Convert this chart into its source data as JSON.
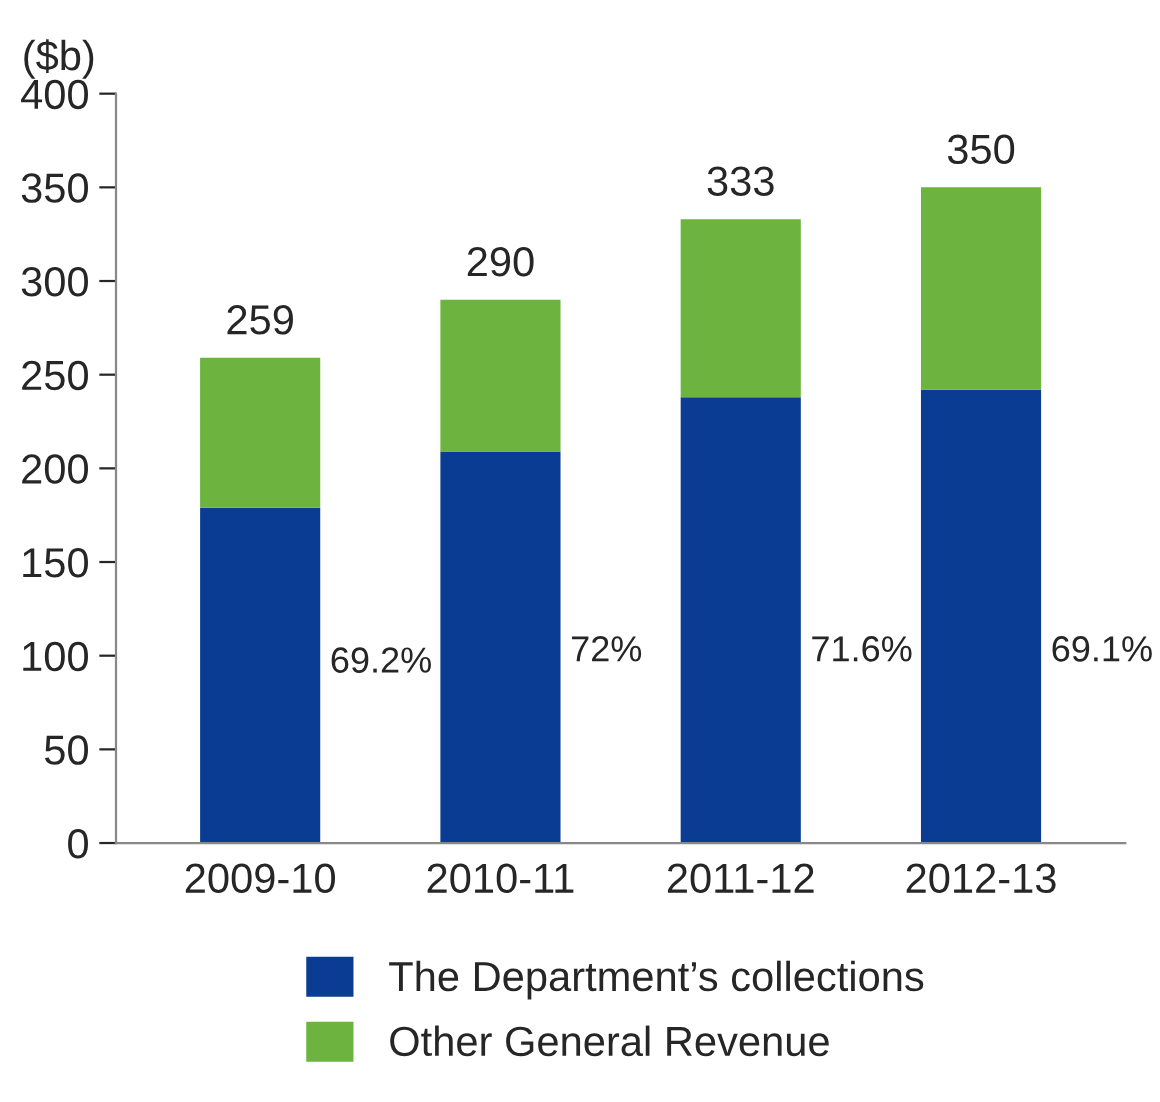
{
  "chart_data": {
    "type": "bar",
    "stacked": true,
    "ylabel": "($b)",
    "categories": [
      "2009-10",
      "2010-11",
      "2011-12",
      "2012-13"
    ],
    "series": [
      {
        "name": "The Department’s collections",
        "color": "#0b3c94",
        "values": [
          179,
          209,
          238,
          242
        ]
      },
      {
        "name": "Other General Revenue",
        "color": "#6cb33f",
        "values": [
          80,
          81,
          95,
          108
        ]
      }
    ],
    "totals": [
      "259",
      "290",
      "333",
      "350"
    ],
    "annotations": [
      "69.2%",
      "72%",
      "71.6%",
      "69.1%"
    ],
    "ylim": [
      0,
      400
    ],
    "yticks": [
      0,
      50,
      100,
      150,
      200,
      250,
      300,
      350,
      400
    ],
    "grid": false,
    "legend": "bottom"
  }
}
